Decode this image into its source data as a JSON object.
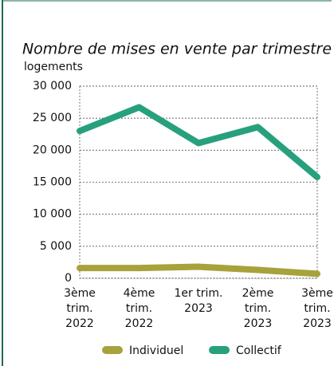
{
  "chart_data": {
    "type": "line",
    "title": "Nombre de mises en vente par trimestre",
    "y_label": "logements",
    "categories": [
      "3ème\ntrim.\n2022",
      "4ème\ntrim.\n2022",
      "1er trim.\n2023",
      "2ème\ntrim.\n2023",
      "3ème\ntrim.\n2023"
    ],
    "series": [
      {
        "name": "Individuel",
        "color": "#a7a23b",
        "values": [
          1600,
          1600,
          1800,
          1300,
          700
        ]
      },
      {
        "name": "Collectif",
        "color": "#27a07d",
        "values": [
          23000,
          26700,
          21100,
          23600,
          15800
        ]
      }
    ],
    "ylim": [
      0,
      30000
    ],
    "yticks": [
      0,
      {
        "value": 5000,
        "label": "5 000"
      },
      {
        "value": 10000,
        "label": "10 000"
      },
      {
        "value": 15000,
        "label": "15 000"
      },
      {
        "value": 20000,
        "label": "20 000"
      },
      {
        "value": 25000,
        "label": "25 000"
      },
      {
        "value": 30000,
        "label": "30 000"
      }
    ],
    "grid": true,
    "legend": "bottom"
  }
}
